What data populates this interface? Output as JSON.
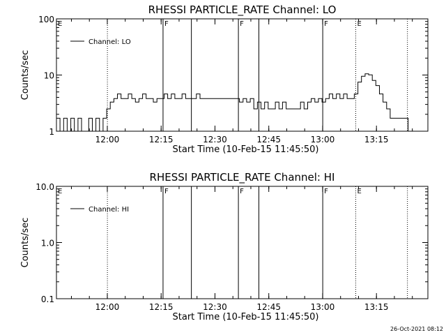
{
  "chart_data": [
    {
      "type": "line",
      "title": "RHESSI PARTICLE_RATE Channel: LO",
      "xlabel": "Start Time (10-Feb-15 11:45:50)",
      "ylabel": "Counts/sec",
      "yscale": "log",
      "ylim": [
        1,
        100
      ],
      "xlim_minutes_since_start": [
        0,
        103.5
      ],
      "x_tick_labels": [
        "12:00",
        "12:15",
        "12:30",
        "12:45",
        "13:00",
        "13:15"
      ],
      "x_tick_minutes": [
        14.17,
        29.17,
        44.17,
        59.17,
        74.17,
        89.17
      ],
      "y_tick_labels": [
        "1",
        "10",
        "100"
      ],
      "y_tick_values": [
        1,
        10,
        100
      ],
      "legend": "Channel: LO",
      "legend_position": "top-left",
      "markers": [
        {
          "label": "E",
          "minute": 0,
          "style": "dotted"
        },
        {
          "label": "",
          "minute": 14.2,
          "style": "dotted"
        },
        {
          "label": "F",
          "minute": 29.7,
          "style": "solid"
        },
        {
          "label": "",
          "minute": 37.6,
          "style": "solid"
        },
        {
          "label": "F",
          "minute": 50.7,
          "style": "solid"
        },
        {
          "label": "",
          "minute": 56.4,
          "style": "solid"
        },
        {
          "label": "F",
          "minute": 74.2,
          "style": "solid"
        },
        {
          "label": "E",
          "minute": 83.4,
          "style": "dotted"
        },
        {
          "label": "",
          "minute": 97.8,
          "style": "dotted"
        }
      ],
      "series": [
        {
          "x": [
            0,
            1,
            2,
            3,
            4,
            5,
            6,
            7,
            8,
            9,
            10,
            11,
            12,
            13,
            14,
            15,
            16,
            17,
            18,
            19,
            20,
            21,
            22,
            23,
            24,
            25,
            26,
            27,
            28,
            29,
            30,
            31,
            32,
            33,
            34,
            35,
            36,
            37,
            38,
            39,
            40,
            41,
            42,
            43,
            44,
            45,
            46,
            47,
            48,
            49,
            50,
            51,
            52,
            53,
            54,
            55,
            56,
            57,
            58,
            59,
            60,
            61,
            62,
            63,
            64,
            65,
            66,
            67,
            68,
            69,
            70,
            71,
            72,
            73,
            74,
            75,
            76,
            77,
            78,
            79,
            80,
            81,
            82,
            83,
            84,
            85,
            86,
            87,
            88,
            89,
            90,
            91,
            92,
            93,
            94,
            95,
            96,
            97,
            98
          ],
          "y": [
            1.7,
            1,
            1.7,
            1,
            1.7,
            1,
            1.7,
            1,
            1,
            1.7,
            1,
            1.7,
            1,
            1.7,
            2.5,
            3.3,
            3.8,
            4.6,
            3.8,
            3.8,
            4.6,
            3.8,
            3.3,
            3.8,
            4.6,
            3.8,
            3.8,
            3.3,
            3.8,
            3.8,
            4.6,
            3.8,
            4.6,
            3.8,
            3.8,
            4.6,
            3.8,
            3.8,
            3.8,
            4.6,
            3.8,
            3.8,
            3.8,
            3.8,
            3.8,
            3.8,
            3.8,
            3.8,
            3.8,
            3.8,
            3.8,
            3.3,
            3.8,
            3.3,
            3.8,
            2.5,
            3.3,
            2.5,
            3.3,
            2.5,
            2.5,
            3.3,
            2.5,
            3.3,
            2.5,
            2.5,
            2.5,
            2.5,
            3.3,
            2.5,
            3.3,
            3.8,
            3.3,
            3.8,
            3.3,
            3.8,
            4.6,
            3.8,
            4.6,
            3.8,
            4.6,
            3.8,
            3.8,
            4.6,
            7.5,
            9.5,
            10.5,
            10.1,
            8,
            6.5,
            4.6,
            3.3,
            2.5,
            1.7,
            1.7,
            1.7,
            1.7,
            1.7,
            1
          ]
        }
      ]
    },
    {
      "type": "line",
      "title": "RHESSI PARTICLE_RATE Channel: HI",
      "xlabel": "Start Time (10-Feb-15 11:45:50)",
      "ylabel": "Counts/sec",
      "yscale": "log",
      "ylim": [
        0.1,
        10
      ],
      "xlim_minutes_since_start": [
        0,
        103.5
      ],
      "x_tick_labels": [
        "12:00",
        "12:15",
        "12:30",
        "12:45",
        "13:00",
        "13:15"
      ],
      "x_tick_minutes": [
        14.17,
        29.17,
        44.17,
        59.17,
        74.17,
        89.17
      ],
      "y_tick_labels": [
        "0.1",
        "1.0",
        "10.0"
      ],
      "y_tick_values": [
        0.1,
        1,
        10
      ],
      "legend": "Channel: HI",
      "legend_position": "top-left",
      "markers": [
        {
          "label": "E",
          "minute": 0,
          "style": "dotted"
        },
        {
          "label": "",
          "minute": 14.2,
          "style": "dotted"
        },
        {
          "label": "F",
          "minute": 29.7,
          "style": "solid"
        },
        {
          "label": "",
          "minute": 37.6,
          "style": "solid"
        },
        {
          "label": "F",
          "minute": 50.7,
          "style": "solid"
        },
        {
          "label": "",
          "minute": 56.4,
          "style": "solid"
        },
        {
          "label": "F",
          "minute": 74.2,
          "style": "solid"
        },
        {
          "label": "E",
          "minute": 83.4,
          "style": "dotted"
        },
        {
          "label": "",
          "minute": 97.8,
          "style": "dotted"
        }
      ],
      "series": [
        {
          "x": [],
          "y": []
        }
      ]
    }
  ],
  "footer": {
    "timestamp": "26-Oct-2021 08:12"
  }
}
